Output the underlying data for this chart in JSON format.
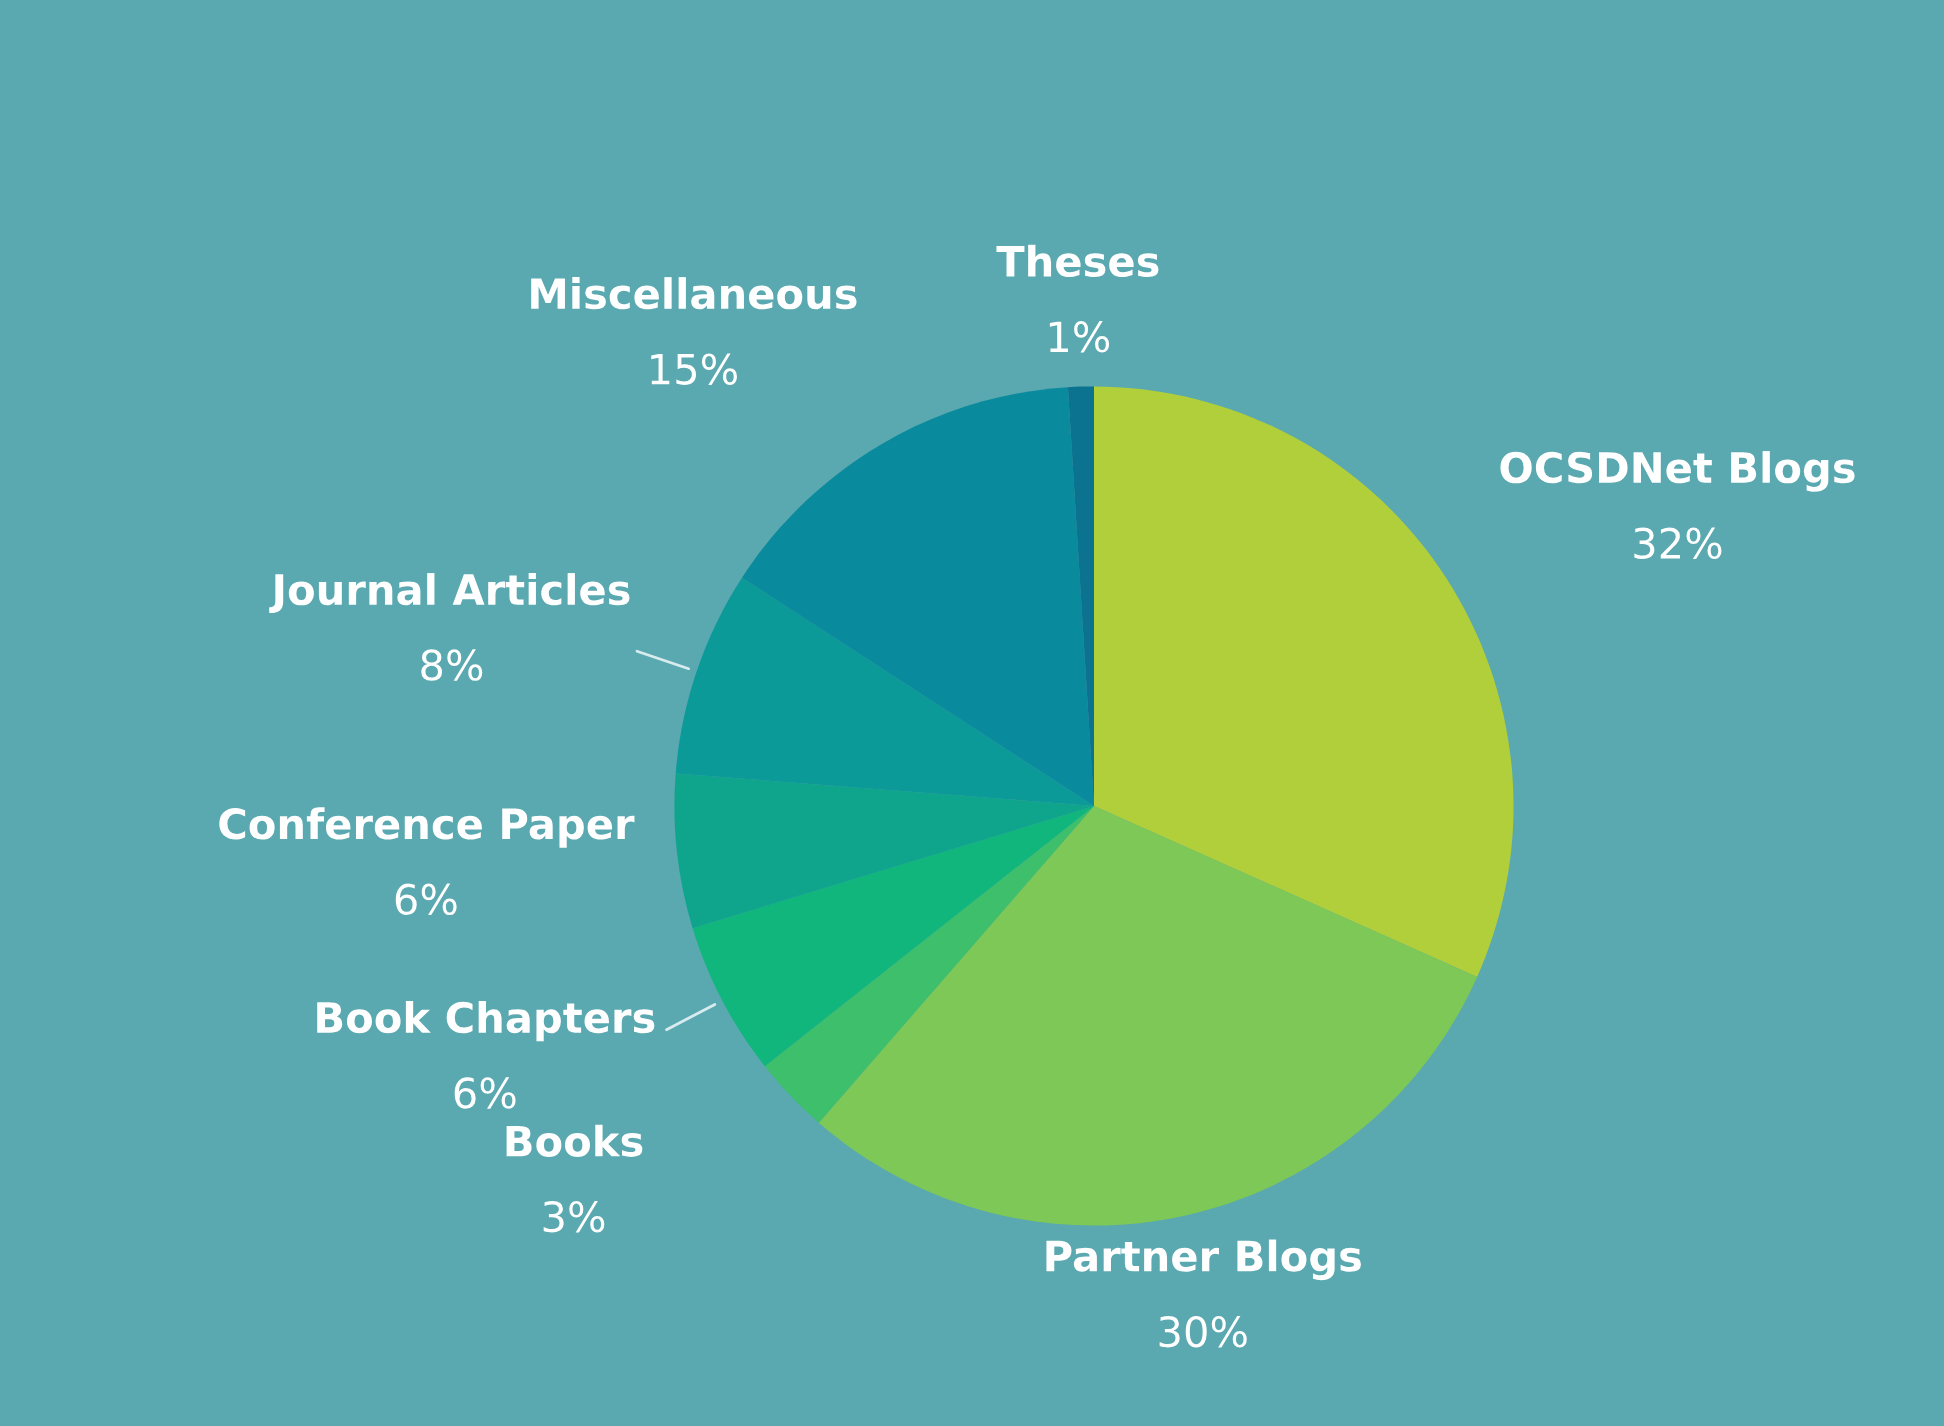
{
  "chart_data": {
    "type": "pie",
    "categories": [
      "OCSDNet Blogs",
      "Partner Blogs",
      "Books",
      "Book Chapters",
      "Conference Paper",
      "Journal Articles",
      "Miscellaneous",
      "Theses"
    ],
    "values": [
      32,
      30,
      3,
      6,
      6,
      8,
      15,
      1
    ],
    "value_labels": [
      "32%",
      "30%",
      "3%",
      "6%",
      "6%",
      "8%",
      "15%",
      "1%"
    ],
    "colors": [
      "#b0cf3a",
      "#7dc856",
      "#3dbf6c",
      "#10b67c",
      "#0ea58c",
      "#0c9a98",
      "#0a8a9d",
      "#0b7290"
    ]
  }
}
